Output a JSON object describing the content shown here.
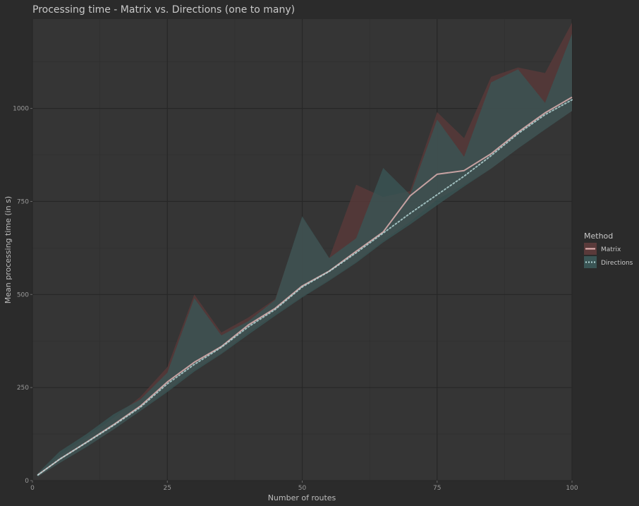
{
  "chart_data": {
    "type": "line",
    "title": "Processing time - Matrix vs. Directions (one to many)",
    "xlabel": "Number of routes",
    "ylabel": "Mean processing time (in s)",
    "xlim": [
      0,
      100
    ],
    "ylim": [
      0,
      1240
    ],
    "x_ticks": [
      0,
      25,
      50,
      75,
      100
    ],
    "y_ticks": [
      0,
      250,
      500,
      750,
      1000
    ],
    "grid": true,
    "legend": {
      "title": "Method",
      "position": "right"
    },
    "x": [
      1,
      5,
      10,
      15,
      20,
      25,
      30,
      35,
      40,
      45,
      50,
      55,
      60,
      65,
      70,
      75,
      80,
      85,
      90,
      95,
      100
    ],
    "series": [
      {
        "name": "Matrix",
        "color": "#e8b7b7",
        "band_color": "#5a3a3a",
        "line_style": "solid",
        "mean": [
          15,
          57,
          103,
          150,
          200,
          265,
          318,
          360,
          418,
          463,
          523,
          563,
          616,
          668,
          765,
          823,
          833,
          878,
          936,
          988,
          1030
        ],
        "upper": [
          20,
          68,
          117,
          168,
          225,
          305,
          500,
          398,
          438,
          488,
          706,
          598,
          795,
          762,
          778,
          990,
          920,
          1085,
          1110,
          1095,
          1230
        ],
        "lower": [
          10,
          48,
          92,
          138,
          190,
          243,
          298,
          343,
          398,
          448,
          495,
          540,
          588,
          645,
          695,
          755,
          795,
          838,
          893,
          945,
          993
        ]
      },
      {
        "name": "Directions",
        "color": "#b6d8d8",
        "band_color": "#3a5555",
        "line_style": "dotted",
        "mean": [
          15,
          57,
          102,
          148,
          197,
          260,
          312,
          358,
          413,
          460,
          520,
          562,
          612,
          665,
          718,
          768,
          818,
          873,
          932,
          983,
          1023
        ],
        "upper": [
          20,
          78,
          125,
          178,
          218,
          290,
          490,
          390,
          428,
          486,
          710,
          598,
          651,
          840,
          768,
          970,
          870,
          1070,
          1105,
          1015,
          1200
        ],
        "lower": [
          10,
          47,
          90,
          137,
          187,
          238,
          293,
          340,
          392,
          443,
          492,
          537,
          585,
          640,
          688,
          740,
          790,
          838,
          892,
          943,
          993
        ]
      }
    ]
  }
}
